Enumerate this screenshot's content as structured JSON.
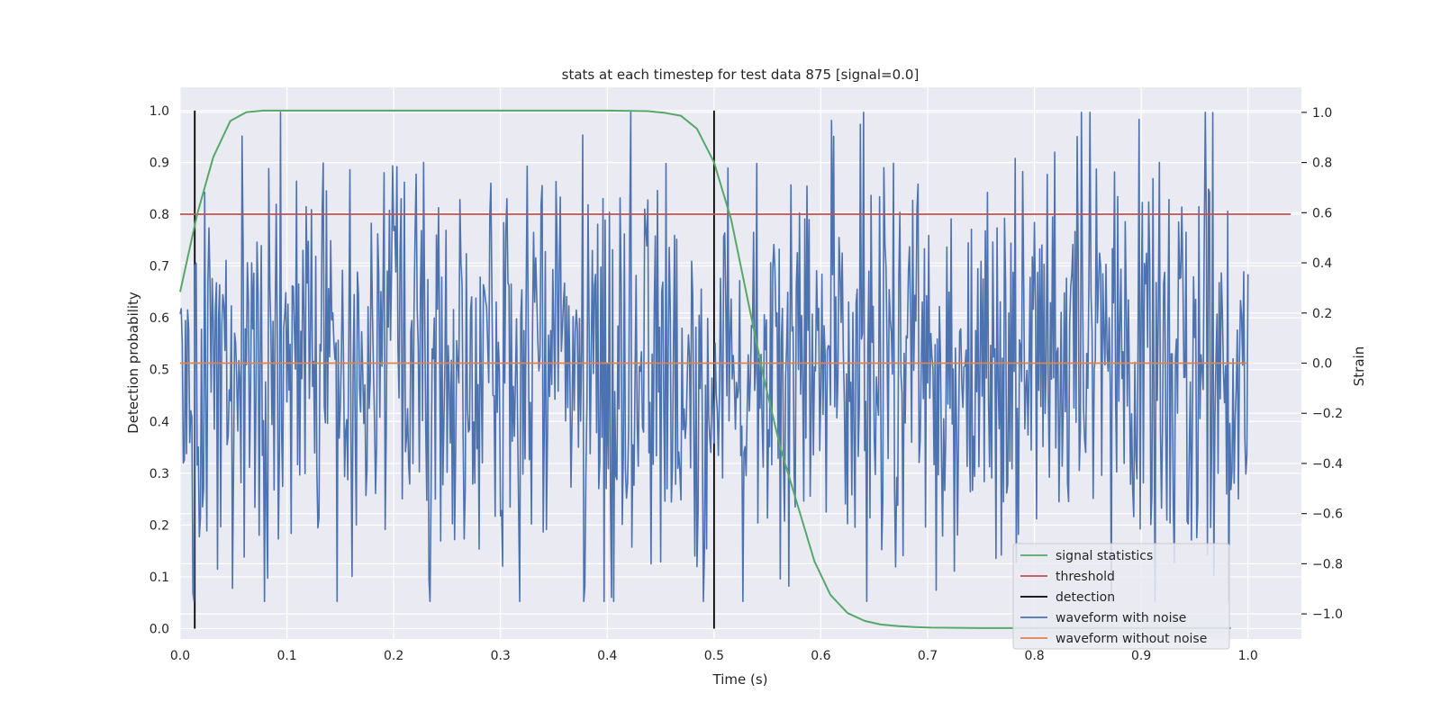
{
  "chart_data": {
    "type": "line",
    "title": "stats at each timestep for test data 875 [signal=0.0]",
    "xlabel": "Time (s)",
    "ylabel": "Detection probability",
    "y2label": "Strain",
    "xlim": [
      0.0,
      1.05
    ],
    "ylim": [
      -0.02,
      1.045
    ],
    "y2lim": [
      -1.1,
      1.1
    ],
    "xticks": [
      0.0,
      0.1,
      0.2,
      0.3,
      0.4,
      0.5,
      0.6,
      0.7,
      0.8,
      0.9,
      1.0
    ],
    "xtick_labels": [
      "0.0",
      "0.1",
      "0.2",
      "0.3",
      "0.4",
      "0.5",
      "0.6",
      "0.7",
      "0.8",
      "0.9",
      "1.0"
    ],
    "yticks": [
      0.0,
      0.1,
      0.2,
      0.3,
      0.4,
      0.5,
      0.6,
      0.7,
      0.8,
      0.9,
      1.0
    ],
    "ytick_labels": [
      "0.0",
      "0.1",
      "0.2",
      "0.3",
      "0.4",
      "0.5",
      "0.6",
      "0.7",
      "0.8",
      "0.9",
      "1.0"
    ],
    "y2ticks": [
      -1.0,
      -0.8,
      -0.6,
      -0.4,
      -0.2,
      0.0,
      0.2,
      0.4,
      0.6,
      0.8,
      1.0
    ],
    "y2tick_labels": [
      "−1.0",
      "−0.8",
      "−0.6",
      "−0.4",
      "−0.2",
      "0.0",
      "0.2",
      "0.4",
      "0.6",
      "0.8",
      "1.0"
    ],
    "grid": true,
    "legend_position": "lower-right",
    "colors": {
      "background": "#eaeaf2",
      "grid": "#ffffff",
      "signal_statistics": "#55a868",
      "threshold": "#c44e52",
      "detection": "#000000",
      "waveform_with_noise": "#4c72b0",
      "waveform_without_noise": "#dd8452"
    },
    "series": [
      {
        "name": "signal statistics",
        "axis": "left",
        "x": [
          0.0,
          0.016,
          0.031,
          0.047,
          0.062,
          0.078,
          0.094,
          0.2,
          0.3,
          0.4,
          0.438,
          0.453,
          0.469,
          0.484,
          0.5,
          0.516,
          0.531,
          0.547,
          0.562,
          0.578,
          0.594,
          0.609,
          0.625,
          0.641,
          0.656,
          0.672,
          0.688,
          0.703,
          0.75,
          0.8,
          0.9,
          0.984
        ],
        "y": [
          0.65,
          0.8,
          0.91,
          0.98,
          0.997,
          1.0,
          1.0,
          1.0,
          1.0,
          1.0,
          0.999,
          0.996,
          0.99,
          0.965,
          0.9,
          0.79,
          0.64,
          0.48,
          0.35,
          0.24,
          0.13,
          0.065,
          0.03,
          0.015,
          0.008,
          0.005,
          0.003,
          0.002,
          0.001,
          0.001,
          0.001,
          0.001
        ]
      },
      {
        "name": "threshold",
        "axis": "left",
        "x": [
          0.0,
          1.04
        ],
        "y": [
          0.8,
          0.8
        ]
      },
      {
        "name": "detection",
        "axis": "left",
        "x": [
          0.0137,
          0.5
        ],
        "y_range": [
          0.0,
          1.0
        ]
      },
      {
        "name": "waveform with noise",
        "axis": "right",
        "x_range": [
          0.0,
          1.0
        ],
        "y_range_approx": [
          -0.95,
          1.0
        ]
      },
      {
        "name": "waveform without noise",
        "axis": "right",
        "x": [
          0.0,
          1.0
        ],
        "y": [
          0.0,
          0.0
        ]
      }
    ],
    "legend": [
      {
        "label": "signal statistics",
        "color": "#55a868"
      },
      {
        "label": "threshold",
        "color": "#c44e52"
      },
      {
        "label": "detection",
        "color": "#000000"
      },
      {
        "label": "waveform with noise",
        "color": "#4c72b0"
      },
      {
        "label": "waveform without noise",
        "color": "#dd8452"
      }
    ]
  }
}
